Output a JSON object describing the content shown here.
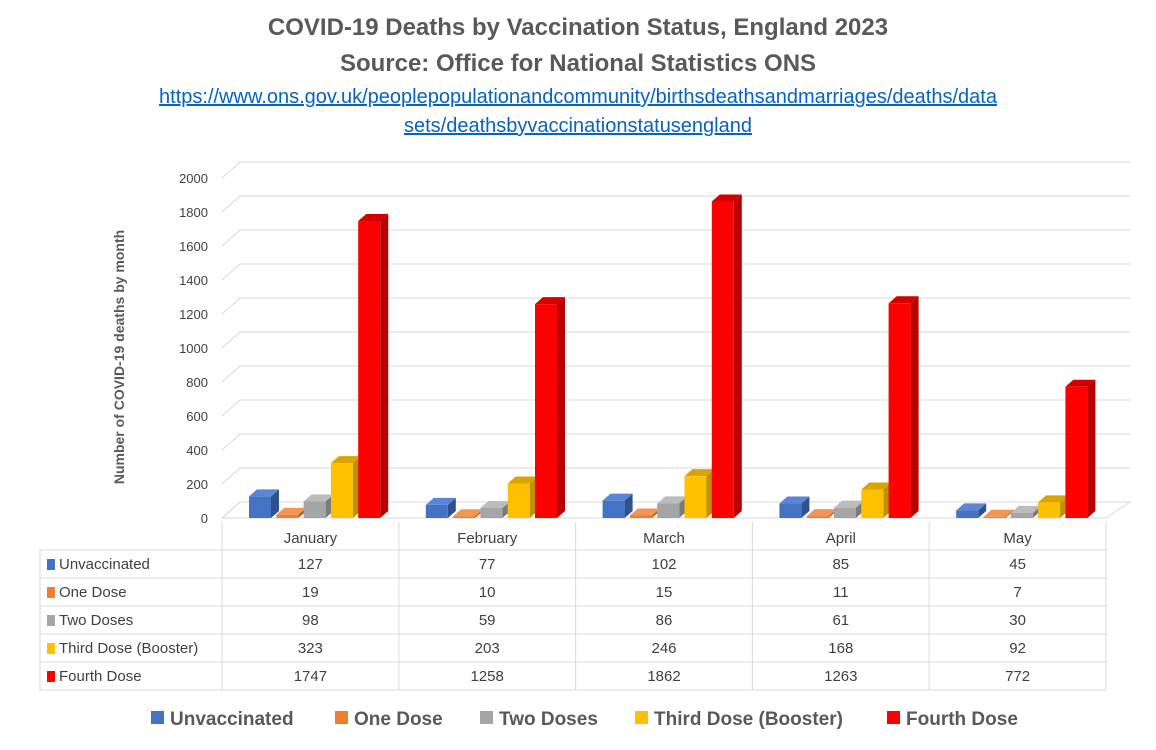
{
  "chart_data": {
    "type": "bar",
    "title": "COVID-19 Deaths by Vaccination Status, England 2023",
    "subtitle": "Source: Office for National Statistics ONS",
    "source_link": [
      "https://www.ons.gov.uk/peoplepopulationandcommunity/birthsdeathsandmarriages/deaths/data",
      "sets/deathsbyvaccinationstatusengland"
    ],
    "xlabel": "",
    "ylabel": "Number of COVID-19 deaths by month",
    "ylim": [
      0,
      2000
    ],
    "yticks": [
      "0",
      "200",
      "400",
      "600",
      "800",
      "1000",
      "1200",
      "1400",
      "1600",
      "1800",
      "2000"
    ],
    "grid": true,
    "legend_position": "bottom",
    "categories": [
      "January",
      "February",
      "March",
      "April",
      "May"
    ],
    "series": [
      {
        "name": "Unvaccinated",
        "color": "#4472c4",
        "side": "#2f528f",
        "top": "#5b86d6",
        "values": [
          127,
          77,
          102,
          85,
          45
        ]
      },
      {
        "name": "One Dose",
        "color": "#ed7d31",
        "side": "#ae5a21",
        "top": "#f29555",
        "values": [
          19,
          10,
          15,
          11,
          7
        ]
      },
      {
        "name": "Two Doses",
        "color": "#a5a5a5",
        "side": "#7b7b7b",
        "top": "#bcbcbc",
        "values": [
          98,
          59,
          86,
          61,
          30
        ]
      },
      {
        "name": "Third Dose (Booster)",
        "color": "#ffc000",
        "side": "#bf9000",
        "top": "#d9a300",
        "values": [
          323,
          203,
          246,
          168,
          92
        ]
      },
      {
        "name": "Fourth Dose",
        "color": "#ff0000",
        "side": "#b80000",
        "top": "#d40000",
        "values": [
          1747,
          1258,
          1862,
          1263,
          772
        ]
      }
    ]
  }
}
